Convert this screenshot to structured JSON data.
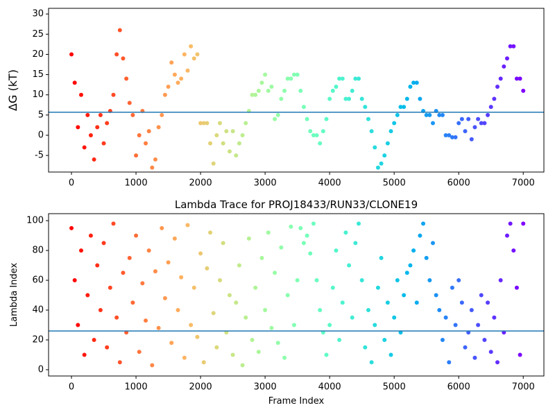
{
  "chart_data": [
    {
      "type": "scatter",
      "ylabel": "ΔG (kT)",
      "colormap": "rainbow_r",
      "hline": 5.7,
      "hline_color": "#1f77b4",
      "xlim": [
        -355,
        7320
      ],
      "xticks": [
        0,
        1000,
        2000,
        3000,
        4000,
        5000,
        6000,
        7000
      ],
      "ylim": [
        -9.1,
        31.4
      ],
      "yticks": [
        -5,
        0,
        5,
        10,
        15,
        20,
        25,
        30
      ],
      "x": [
        0,
        50,
        100,
        150,
        200,
        250,
        300,
        350,
        400,
        450,
        500,
        550,
        600,
        650,
        700,
        750,
        800,
        850,
        900,
        950,
        1000,
        1050,
        1100,
        1150,
        1200,
        1250,
        1300,
        1350,
        1400,
        1450,
        1500,
        1550,
        1600,
        1650,
        1700,
        1750,
        1800,
        1850,
        1900,
        1950,
        2000,
        2050,
        2100,
        2150,
        2200,
        2250,
        2300,
        2350,
        2400,
        2450,
        2500,
        2550,
        2600,
        2650,
        2700,
        2750,
        2800,
        2850,
        2900,
        2950,
        3000,
        3050,
        3100,
        3150,
        3200,
        3250,
        3300,
        3350,
        3400,
        3450,
        3500,
        3550,
        3600,
        3650,
        3700,
        3750,
        3800,
        3850,
        3900,
        3950,
        4000,
        4050,
        4100,
        4150,
        4200,
        4250,
        4300,
        4350,
        4400,
        4450,
        4500,
        4550,
        4600,
        4650,
        4700,
        4750,
        4800,
        4850,
        4900,
        4950,
        5000,
        5050,
        5100,
        5150,
        5200,
        5250,
        5300,
        5350,
        5400,
        5450,
        5500,
        5550,
        5600,
        5650,
        5700,
        5750,
        5800,
        5850,
        5900,
        5950,
        6000,
        6050,
        6100,
        6150,
        6200,
        6250,
        6300,
        6350,
        6400,
        6450,
        6500,
        6550,
        6600,
        6650,
        6700,
        6750,
        6800,
        6850,
        6900,
        6950,
        7000
      ],
      "values": [
        20,
        13,
        2,
        10,
        -3,
        5,
        0,
        -6,
        2,
        5,
        -2,
        3,
        6,
        10,
        20,
        26,
        19,
        14,
        8,
        5,
        -5,
        0,
        6,
        -2,
        1,
        -8,
        -6,
        2,
        5,
        10,
        12,
        18,
        15,
        13,
        14,
        20,
        16,
        22,
        19,
        20,
        3,
        3,
        3,
        -2,
        -7,
        0,
        3,
        -2,
        1,
        -4,
        1,
        -5,
        -2,
        0,
        3,
        6,
        10,
        10,
        11,
        13,
        15,
        11,
        12,
        4,
        5,
        9,
        11,
        14,
        14,
        15,
        15,
        11,
        7,
        4,
        1,
        0,
        0,
        -2,
        1,
        4,
        9,
        11,
        12,
        14,
        14,
        9,
        9,
        11,
        14,
        14,
        9,
        7,
        4,
        1,
        -3,
        -8,
        -7,
        -5,
        -2,
        1,
        3,
        5,
        7,
        7,
        9,
        12,
        13,
        13,
        9,
        6,
        5,
        5,
        3,
        6,
        5,
        5,
        0,
        0,
        -0.5,
        -0.5,
        3,
        4,
        1,
        4,
        -1,
        2,
        4,
        3,
        3,
        5,
        7,
        9,
        12,
        14,
        17,
        19,
        22,
        22,
        14,
        14,
        11
      ]
    },
    {
      "type": "scatter",
      "title": "Lambda Trace for PROJ18433/RUN33/CLONE19",
      "xlabel": "Frame Index",
      "ylabel": "Lambda Index",
      "colormap": "rainbow_r",
      "hline": 26,
      "hline_color": "#1f77b4",
      "xlim": [
        -355,
        7320
      ],
      "xticks": [
        0,
        1000,
        2000,
        3000,
        4000,
        5000,
        6000,
        7000
      ],
      "ylim": [
        -4.2,
        104.7
      ],
      "yticks": [
        0,
        20,
        40,
        60,
        80,
        100
      ],
      "x": [
        0,
        50,
        100,
        150,
        200,
        250,
        300,
        350,
        400,
        450,
        500,
        550,
        600,
        650,
        700,
        750,
        800,
        850,
        900,
        950,
        1000,
        1050,
        1100,
        1150,
        1200,
        1250,
        1300,
        1350,
        1400,
        1450,
        1500,
        1550,
        1600,
        1650,
        1700,
        1750,
        1800,
        1850,
        1900,
        1950,
        2000,
        2050,
        2100,
        2150,
        2200,
        2250,
        2300,
        2350,
        2400,
        2450,
        2500,
        2550,
        2600,
        2650,
        2700,
        2750,
        2800,
        2850,
        2900,
        2950,
        3000,
        3050,
        3100,
        3150,
        3200,
        3250,
        3300,
        3350,
        3400,
        3450,
        3500,
        3550,
        3600,
        3650,
        3700,
        3750,
        3800,
        3850,
        3900,
        3950,
        4000,
        4050,
        4100,
        4150,
        4200,
        4250,
        4300,
        4350,
        4400,
        4450,
        4500,
        4550,
        4600,
        4650,
        4700,
        4750,
        4800,
        4850,
        4900,
        4950,
        5000,
        5050,
        5100,
        5150,
        5200,
        5250,
        5300,
        5350,
        5400,
        5450,
        5500,
        5550,
        5600,
        5650,
        5700,
        5750,
        5800,
        5850,
        5900,
        5950,
        6000,
        6050,
        6100,
        6150,
        6200,
        6250,
        6300,
        6350,
        6400,
        6450,
        6500,
        6550,
        6600,
        6650,
        6700,
        6750,
        6800,
        6850,
        6900,
        6950,
        7000
      ],
      "values": [
        95,
        60,
        30,
        80,
        10,
        50,
        90,
        20,
        70,
        40,
        85,
        15,
        55,
        98,
        35,
        5,
        65,
        25,
        75,
        45,
        90,
        12,
        58,
        33,
        80,
        3,
        66,
        28,
        95,
        48,
        72,
        18,
        88,
        40,
        62,
        8,
        97,
        30,
        55,
        22,
        78,
        5,
        68,
        92,
        38,
        15,
        60,
        85,
        25,
        50,
        10,
        45,
        70,
        3,
        35,
        88,
        20,
        55,
        12,
        75,
        40,
        92,
        28,
        65,
        18,
        82,
        8,
        50,
        96,
        30,
        60,
        95,
        85,
        90,
        78,
        98,
        60,
        40,
        25,
        10,
        30,
        55,
        80,
        20,
        45,
        92,
        70,
        35,
        85,
        98,
        60,
        15,
        40,
        5,
        30,
        55,
        75,
        20,
        45,
        10,
        35,
        60,
        25,
        50,
        65,
        70,
        80,
        45,
        90,
        98,
        75,
        60,
        85,
        50,
        40,
        20,
        35,
        5,
        55,
        30,
        60,
        45,
        15,
        25,
        40,
        8,
        30,
        50,
        20,
        45,
        12,
        35,
        5,
        60,
        25,
        90,
        98,
        80,
        55,
        10,
        98
      ]
    }
  ]
}
